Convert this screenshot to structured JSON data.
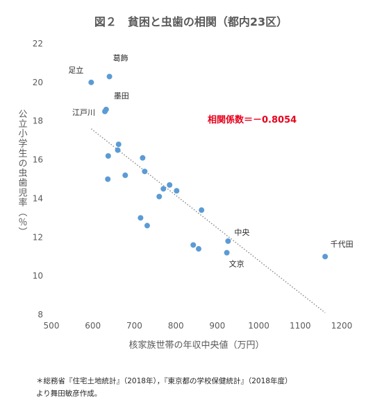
{
  "chart_data": {
    "type": "scatter",
    "title": "図２　貧困と虫歯の相関（都内23区）",
    "xlabel": "核家族世帯の年収中央値（万円）",
    "ylabel": "公立小学生の虫歯児率（％）",
    "xlim": [
      500,
      1200
    ],
    "ylim": [
      8,
      22
    ],
    "xticks": [
      500,
      600,
      700,
      800,
      900,
      1000,
      1100,
      1200
    ],
    "yticks": [
      8,
      10,
      12,
      14,
      16,
      18,
      20,
      22
    ],
    "grid": false,
    "trendline": {
      "style": "dotted",
      "from": [
        596,
        17.6
      ],
      "to": [
        1160,
        8.1
      ]
    },
    "annotation": "相関係数＝－0.8054",
    "points": [
      {
        "x": 596,
        "y": 20.0,
        "label": "足立"
      },
      {
        "x": 640,
        "y": 20.3,
        "label": "葛飾"
      },
      {
        "x": 632,
        "y": 18.6,
        "label": "墨田"
      },
      {
        "x": 629,
        "y": 18.5,
        "label": "江戸川"
      },
      {
        "x": 662,
        "y": 16.8,
        "label": ""
      },
      {
        "x": 660,
        "y": 16.5,
        "label": ""
      },
      {
        "x": 637,
        "y": 16.2,
        "label": ""
      },
      {
        "x": 720,
        "y": 16.1,
        "label": ""
      },
      {
        "x": 725,
        "y": 15.4,
        "label": ""
      },
      {
        "x": 678,
        "y": 15.2,
        "label": ""
      },
      {
        "x": 636,
        "y": 15.0,
        "label": ""
      },
      {
        "x": 785,
        "y": 14.7,
        "label": ""
      },
      {
        "x": 770,
        "y": 14.5,
        "label": ""
      },
      {
        "x": 802,
        "y": 14.4,
        "label": ""
      },
      {
        "x": 760,
        "y": 14.1,
        "label": ""
      },
      {
        "x": 862,
        "y": 13.4,
        "label": ""
      },
      {
        "x": 715,
        "y": 13.0,
        "label": ""
      },
      {
        "x": 731,
        "y": 12.6,
        "label": ""
      },
      {
        "x": 926,
        "y": 11.8,
        "label": "中央"
      },
      {
        "x": 842,
        "y": 11.6,
        "label": ""
      },
      {
        "x": 855,
        "y": 11.4,
        "label": ""
      },
      {
        "x": 923,
        "y": 11.2,
        "label": "文京"
      },
      {
        "x": 1160,
        "y": 11.0,
        "label": "千代田"
      }
    ]
  },
  "source_note": {
    "line1": "＊総務省『住宅土地統計』（2018年），『東京都の学校保健統計』（2018年度）",
    "line2": "より舞田敏彦作成。"
  }
}
